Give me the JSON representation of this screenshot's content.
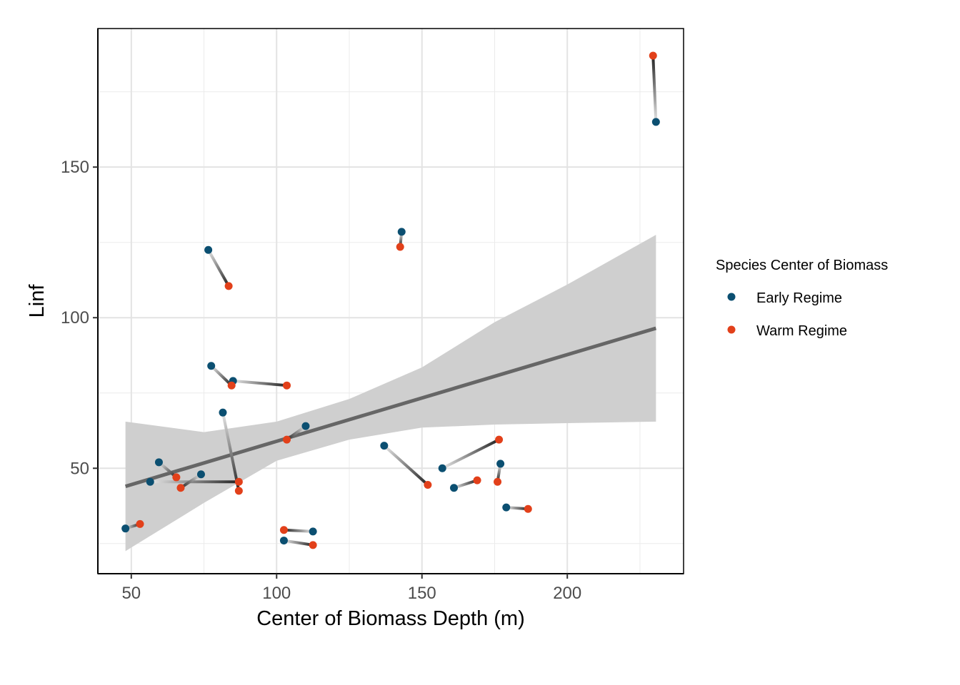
{
  "chart_data": {
    "type": "scatter",
    "title": "",
    "xlabel": "Center of Biomass Depth (m)",
    "ylabel": "Linf",
    "xlim": [
      38.5,
      240
    ],
    "ylim": [
      15,
      196
    ],
    "x_ticks": [
      50,
      100,
      150,
      200
    ],
    "y_ticks": [
      50,
      100,
      150
    ],
    "grid": true,
    "legend": {
      "title": "Species Center of Biomass",
      "placement": "right",
      "entries": [
        {
          "label": "Early Regime",
          "color": "#0B4F71"
        },
        {
          "label": "Warm Regime",
          "color": "#E2401A"
        }
      ]
    },
    "series": [
      {
        "name": "Early Regime",
        "color": "#0B4F71",
        "points": [
          [
            48,
            30
          ],
          [
            56.5,
            45.5
          ],
          [
            59.5,
            52
          ],
          [
            74,
            48
          ],
          [
            76.5,
            122.5
          ],
          [
            77.5,
            84
          ],
          [
            81.5,
            68.5
          ],
          [
            85,
            79
          ],
          [
            102.5,
            26
          ],
          [
            110,
            64
          ],
          [
            112.5,
            29
          ],
          [
            137,
            57.5
          ],
          [
            143,
            128.5
          ],
          [
            157,
            50
          ],
          [
            161,
            43.5
          ],
          [
            177,
            51.5
          ],
          [
            179,
            37
          ],
          [
            230.5,
            165
          ]
        ]
      },
      {
        "name": "Warm Regime",
        "color": "#E2401A",
        "points": [
          [
            53,
            31.5
          ],
          [
            65.5,
            47
          ],
          [
            67,
            43.5
          ],
          [
            83.5,
            110.5
          ],
          [
            84.5,
            77.5
          ],
          [
            87,
            45.5
          ],
          [
            87,
            42.5
          ],
          [
            102.5,
            29.5
          ],
          [
            103.5,
            59.5
          ],
          [
            103.5,
            77.5
          ],
          [
            112.5,
            24.5
          ],
          [
            142.5,
            123.5
          ],
          [
            152,
            44.5
          ],
          [
            169,
            46
          ],
          [
            176,
            45.5
          ],
          [
            176.5,
            59.5
          ],
          [
            186.5,
            36.5
          ],
          [
            229.5,
            187
          ]
        ]
      }
    ],
    "segments": [
      [
        [
          48,
          30
        ],
        [
          53,
          31.5
        ]
      ],
      [
        [
          56.5,
          45.5
        ],
        [
          87,
          45.5
        ]
      ],
      [
        [
          59.5,
          52
        ],
        [
          65.5,
          47
        ]
      ],
      [
        [
          74,
          48
        ],
        [
          67,
          43.5
        ]
      ],
      [
        [
          76.5,
          122.5
        ],
        [
          83.5,
          110.5
        ]
      ],
      [
        [
          77.5,
          84
        ],
        [
          84.5,
          77.5
        ]
      ],
      [
        [
          81.5,
          68.5
        ],
        [
          87,
          42.5
        ]
      ],
      [
        [
          85,
          79
        ],
        [
          103.5,
          77.5
        ]
      ],
      [
        [
          102.5,
          26
        ],
        [
          112.5,
          24.5
        ]
      ],
      [
        [
          110,
          64
        ],
        [
          103.5,
          59.5
        ]
      ],
      [
        [
          112.5,
          29
        ],
        [
          102.5,
          29.5
        ]
      ],
      [
        [
          137,
          57.5
        ],
        [
          152,
          44.5
        ]
      ],
      [
        [
          143,
          128.5
        ],
        [
          142.5,
          123.5
        ]
      ],
      [
        [
          157,
          50
        ],
        [
          176.5,
          59.5
        ]
      ],
      [
        [
          161,
          43.5
        ],
        [
          169,
          46
        ]
      ],
      [
        [
          177,
          51.5
        ],
        [
          176,
          45.5
        ]
      ],
      [
        [
          179,
          37
        ],
        [
          186.5,
          36.5
        ]
      ],
      [
        [
          230.5,
          165
        ],
        [
          229.5,
          187
        ]
      ]
    ],
    "trend": {
      "x": [
        48,
        230.5
      ],
      "y": [
        44,
        96.5
      ],
      "ci_x": [
        48,
        75,
        100,
        125,
        150,
        175,
        200,
        230.5
      ],
      "ci_lower": [
        22.5,
        38.5,
        52.5,
        59.5,
        63.5,
        64.5,
        65,
        65.5
      ],
      "ci_upper": [
        65.5,
        62,
        65.5,
        73,
        83.5,
        98.5,
        111,
        127.5
      ],
      "line_color": "#666666",
      "band_color": "#cfcfcf"
    }
  }
}
